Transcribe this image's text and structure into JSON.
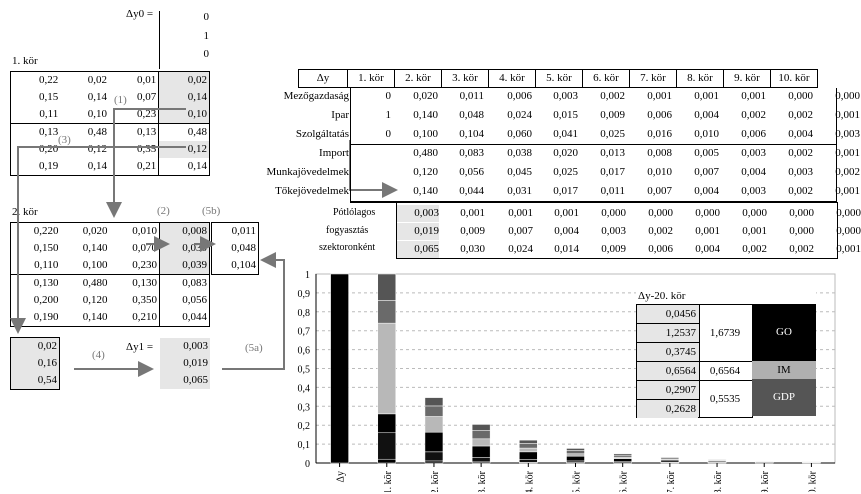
{
  "dy0": {
    "label": "Δy0 =",
    "values": [
      "0",
      "1",
      "0"
    ]
  },
  "round1": {
    "title": "1. kör",
    "matrix": [
      [
        "0,22",
        "0,02",
        "0,01",
        "0,02"
      ],
      [
        "0,15",
        "0,14",
        "0,07",
        "0,14"
      ],
      [
        "0,11",
        "0,10",
        "0,23",
        "0,10"
      ],
      [
        "0,13",
        "0,48",
        "0,13",
        "0,48"
      ],
      [
        "0,20",
        "0,12",
        "0,35",
        "0,12"
      ],
      [
        "0,19",
        "0,14",
        "0,21",
        "0,14"
      ]
    ]
  },
  "round2": {
    "title": "2. kör",
    "matrix": [
      [
        "0,220",
        "0,020",
        "0,010",
        "0,008",
        "0,011"
      ],
      [
        "0,150",
        "0,140",
        "0,070",
        "0,030",
        "0,048"
      ],
      [
        "0,110",
        "0,100",
        "0,230",
        "0,039",
        "0,104"
      ],
      [
        "0,130",
        "0,480",
        "0,130",
        "0,083"
      ],
      [
        "0,200",
        "0,120",
        "0,350",
        "0,056"
      ],
      [
        "0,190",
        "0,140",
        "0,210",
        "0,044"
      ]
    ],
    "left_vec": [
      "0,02",
      "0,16",
      "0,54"
    ],
    "dy1_label": "Δy1 =",
    "dy1": [
      "0,003",
      "0,019",
      "0,065"
    ]
  },
  "arrows": [
    "(1)",
    "(2)",
    "(3)",
    "(4)",
    "(5a)",
    "(5b)"
  ],
  "summary": {
    "headers": [
      "Δy",
      "1. kör",
      "2. kör",
      "3. kör",
      "4. kör",
      "5. kör",
      "6. kör",
      "7. kör",
      "8. kör",
      "9. kör",
      "10. kör"
    ],
    "rows": [
      {
        "label": "Mezőgazdaság",
        "values": [
          "0",
          "0,020",
          "0,011",
          "0,006",
          "0,003",
          "0,002",
          "0,001",
          "0,001",
          "0,001",
          "0,000",
          "0,000"
        ]
      },
      {
        "label": "Ipar",
        "values": [
          "1",
          "0,140",
          "0,048",
          "0,024",
          "0,015",
          "0,009",
          "0,006",
          "0,004",
          "0,002",
          "0,002",
          "0,001"
        ]
      },
      {
        "label": "Szolgáltatás",
        "values": [
          "0",
          "0,100",
          "0,104",
          "0,060",
          "0,041",
          "0,025",
          "0,016",
          "0,010",
          "0,006",
          "0,004",
          "0,003"
        ]
      },
      {
        "label": "Import",
        "values": [
          "",
          "0,480",
          "0,083",
          "0,038",
          "0,020",
          "0,013",
          "0,008",
          "0,005",
          "0,003",
          "0,002",
          "0,001"
        ]
      },
      {
        "label": "Munkajövedelmek",
        "values": [
          "",
          "0,120",
          "0,056",
          "0,045",
          "0,025",
          "0,017",
          "0,010",
          "0,007",
          "0,004",
          "0,003",
          "0,002"
        ]
      },
      {
        "label": "Tőkejövedelmek",
        "values": [
          "",
          "0,140",
          "0,044",
          "0,031",
          "0,017",
          "0,011",
          "0,007",
          "0,004",
          "0,003",
          "0,002",
          "0,001"
        ]
      }
    ],
    "consumption_label": [
      "Pótlólagos",
      "fogyasztás",
      "szektoronként"
    ],
    "consumption_rows": [
      [
        "0,003",
        "0,001",
        "0,001",
        "0,001",
        "0,000",
        "0,000",
        "0,000",
        "0,000",
        "0,000",
        "0,000"
      ],
      [
        "0,019",
        "0,009",
        "0,007",
        "0,004",
        "0,003",
        "0,002",
        "0,001",
        "0,001",
        "0,000",
        "0,000"
      ],
      [
        "0,065",
        "0,030",
        "0,024",
        "0,014",
        "0,009",
        "0,006",
        "0,004",
        "0,002",
        "0,002",
        "0,001"
      ]
    ]
  },
  "chart_data": {
    "type": "bar",
    "categories": [
      "Δy",
      "1. kör",
      "2. kör",
      "3. kör",
      "4. kör",
      "5. kör",
      "6. kör",
      "7. kör",
      "8. kör",
      "9. kör",
      "10. kör"
    ],
    "ylim": [
      0,
      1
    ],
    "yticks": [
      "0",
      "0,1",
      "0,2",
      "0,3",
      "0,4",
      "0,5",
      "0,6",
      "0,7",
      "0,8",
      "0,9",
      "1"
    ],
    "stacks": [
      [
        {
          "v": 1.0,
          "c": "#000000"
        }
      ],
      [
        {
          "v": 0.02,
          "c": "#000000"
        },
        {
          "v": 0.14,
          "c": "#111111"
        },
        {
          "v": 0.1,
          "c": "#000000"
        },
        {
          "v": 0.48,
          "c": "#b8b8b8"
        },
        {
          "v": 0.12,
          "c": "#6a6a6a"
        },
        {
          "v": 0.14,
          "c": "#555555"
        }
      ],
      [
        {
          "v": 0.011,
          "c": "#000000"
        },
        {
          "v": 0.048,
          "c": "#111111"
        },
        {
          "v": 0.104,
          "c": "#000000"
        },
        {
          "v": 0.083,
          "c": "#b8b8b8"
        },
        {
          "v": 0.056,
          "c": "#6a6a6a"
        },
        {
          "v": 0.044,
          "c": "#555555"
        }
      ],
      [
        {
          "v": 0.006,
          "c": "#000000"
        },
        {
          "v": 0.024,
          "c": "#111111"
        },
        {
          "v": 0.06,
          "c": "#000000"
        },
        {
          "v": 0.038,
          "c": "#b8b8b8"
        },
        {
          "v": 0.045,
          "c": "#6a6a6a"
        },
        {
          "v": 0.031,
          "c": "#555555"
        }
      ],
      [
        {
          "v": 0.003,
          "c": "#000000"
        },
        {
          "v": 0.015,
          "c": "#111111"
        },
        {
          "v": 0.041,
          "c": "#000000"
        },
        {
          "v": 0.02,
          "c": "#b8b8b8"
        },
        {
          "v": 0.025,
          "c": "#6a6a6a"
        },
        {
          "v": 0.017,
          "c": "#555555"
        }
      ],
      [
        {
          "v": 0.002,
          "c": "#000000"
        },
        {
          "v": 0.009,
          "c": "#111111"
        },
        {
          "v": 0.025,
          "c": "#000000"
        },
        {
          "v": 0.013,
          "c": "#b8b8b8"
        },
        {
          "v": 0.017,
          "c": "#6a6a6a"
        },
        {
          "v": 0.011,
          "c": "#555555"
        }
      ],
      [
        {
          "v": 0.001,
          "c": "#000000"
        },
        {
          "v": 0.006,
          "c": "#111111"
        },
        {
          "v": 0.016,
          "c": "#000000"
        },
        {
          "v": 0.008,
          "c": "#b8b8b8"
        },
        {
          "v": 0.01,
          "c": "#6a6a6a"
        },
        {
          "v": 0.007,
          "c": "#555555"
        }
      ],
      [
        {
          "v": 0.001,
          "c": "#000000"
        },
        {
          "v": 0.004,
          "c": "#111111"
        },
        {
          "v": 0.01,
          "c": "#000000"
        },
        {
          "v": 0.005,
          "c": "#b8b8b8"
        },
        {
          "v": 0.007,
          "c": "#6a6a6a"
        },
        {
          "v": 0.004,
          "c": "#555555"
        }
      ],
      [
        {
          "v": 0.001,
          "c": "#000000"
        },
        {
          "v": 0.002,
          "c": "#111111"
        },
        {
          "v": 0.006,
          "c": "#000000"
        },
        {
          "v": 0.003,
          "c": "#b8b8b8"
        },
        {
          "v": 0.004,
          "c": "#6a6a6a"
        },
        {
          "v": 0.003,
          "c": "#555555"
        }
      ],
      [
        {
          "v": 0.0,
          "c": "#000000"
        },
        {
          "v": 0.002,
          "c": "#111111"
        },
        {
          "v": 0.004,
          "c": "#000000"
        },
        {
          "v": 0.002,
          "c": "#b8b8b8"
        },
        {
          "v": 0.003,
          "c": "#6a6a6a"
        },
        {
          "v": 0.002,
          "c": "#555555"
        }
      ],
      [
        {
          "v": 0.0,
          "c": "#000000"
        },
        {
          "v": 0.001,
          "c": "#111111"
        },
        {
          "v": 0.003,
          "c": "#000000"
        },
        {
          "v": 0.001,
          "c": "#b8b8b8"
        },
        {
          "v": 0.002,
          "c": "#6a6a6a"
        },
        {
          "v": 0.001,
          "c": "#555555"
        }
      ]
    ],
    "legend_box": {
      "title": "Δy-20. kör",
      "values": [
        "0,0456",
        "1,2537",
        "0,3745",
        "0,6564",
        "0,2907",
        "0,2628"
      ],
      "sums": [
        "1,6739",
        "0,6564",
        "0,5535"
      ],
      "labels": [
        "GO",
        "IM",
        "GDP"
      ],
      "colors": [
        "#000000",
        "#b0b0b0",
        "#555555"
      ]
    }
  }
}
